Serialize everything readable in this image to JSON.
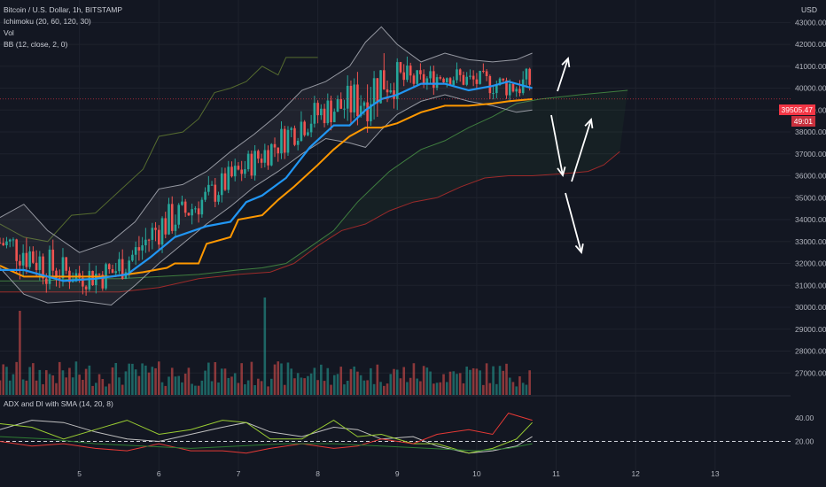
{
  "header": {
    "symbol_line": "Bitcoin / U.S. Dollar, 1h, BITSTAMP",
    "indicators": [
      "Ichimoku (20, 60, 120, 30)",
      "Vol",
      "BB (12, close, 2, 0)"
    ],
    "currency": "USD",
    "price_last": "39505.47",
    "countdown_prefix": "39",
    "countdown": "49:01"
  },
  "subpane": {
    "title": "ADX and DI with SMA (14, 20, 8)"
  },
  "chart_data": {
    "type": "candlestick",
    "price_axis": {
      "min": 26000,
      "max": 43700,
      "ticks": [
        27000,
        28000,
        29000,
        30000,
        31000,
        32000,
        33000,
        34000,
        35000,
        36000,
        37000,
        38000,
        39000,
        40000,
        41000,
        42000,
        43000
      ]
    },
    "x_axis": {
      "range_days": [
        4.0,
        13.95
      ],
      "tick_labels": [
        "5",
        "6",
        "7",
        "8",
        "9",
        "10",
        "11",
        "12",
        "13"
      ],
      "tick_days": [
        5,
        6,
        7,
        8,
        9,
        10,
        11,
        12,
        13
      ]
    },
    "grid": true,
    "price_close_line": 39505.47,
    "tenkan": [
      [
        4.0,
        31700
      ],
      [
        4.3,
        31700
      ],
      [
        4.5,
        31500
      ],
      [
        4.8,
        31200
      ],
      [
        5.2,
        31300
      ],
      [
        5.6,
        31500
      ],
      [
        5.9,
        32300
      ],
      [
        6.2,
        33200
      ],
      [
        6.6,
        33700
      ],
      [
        6.9,
        33900
      ],
      [
        7.1,
        34800
      ],
      [
        7.3,
        35100
      ],
      [
        7.6,
        35900
      ],
      [
        7.9,
        37300
      ],
      [
        8.2,
        38300
      ],
      [
        8.4,
        38300
      ],
      [
        8.6,
        39000
      ],
      [
        8.8,
        39500
      ],
      [
        9.0,
        39700
      ],
      [
        9.3,
        40200
      ],
      [
        9.6,
        40200
      ],
      [
        9.9,
        39900
      ],
      [
        10.2,
        40100
      ],
      [
        10.4,
        40300
      ],
      [
        10.7,
        40000
      ]
    ],
    "kijun": [
      [
        4.0,
        31900
      ],
      [
        4.3,
        31400
      ],
      [
        4.6,
        31400
      ],
      [
        5.0,
        31400
      ],
      [
        5.4,
        31400
      ],
      [
        5.8,
        31600
      ],
      [
        6.1,
        31800
      ],
      [
        6.2,
        32000
      ],
      [
        6.5,
        32000
      ],
      [
        6.6,
        32900
      ],
      [
        6.9,
        33200
      ],
      [
        7.0,
        34000
      ],
      [
        7.3,
        34200
      ],
      [
        7.5,
        34900
      ],
      [
        7.7,
        35500
      ],
      [
        8.0,
        36500
      ],
      [
        8.2,
        37200
      ],
      [
        8.4,
        37800
      ],
      [
        8.6,
        38200
      ],
      [
        8.8,
        38200
      ],
      [
        9.0,
        38400
      ],
      [
        9.3,
        38900
      ],
      [
        9.6,
        39200
      ],
      [
        9.9,
        39200
      ],
      [
        10.2,
        39300
      ],
      [
        10.4,
        39400
      ],
      [
        10.7,
        39500
      ]
    ],
    "senkou_a": [
      [
        4.0,
        31200
      ],
      [
        4.5,
        31200
      ],
      [
        5.0,
        31300
      ],
      [
        5.5,
        31300
      ],
      [
        6.0,
        31400
      ],
      [
        6.5,
        31500
      ],
      [
        7.0,
        31700
      ],
      [
        7.3,
        31800
      ],
      [
        7.6,
        32000
      ],
      [
        7.8,
        32500
      ],
      [
        8.0,
        33000
      ],
      [
        8.2,
        33500
      ],
      [
        8.5,
        34800
      ],
      [
        8.7,
        35500
      ],
      [
        8.9,
        36200
      ],
      [
        9.1,
        36700
      ],
      [
        9.3,
        37200
      ],
      [
        9.6,
        37600
      ],
      [
        9.9,
        38200
      ],
      [
        10.2,
        38700
      ],
      [
        10.5,
        39300
      ],
      [
        10.8,
        39500
      ],
      [
        11.3,
        39700
      ],
      [
        11.6,
        39800
      ],
      [
        11.9,
        39900
      ]
    ],
    "senkou_b": [
      [
        4.0,
        30700
      ],
      [
        4.8,
        30700
      ],
      [
        5.5,
        30700
      ],
      [
        6.0,
        30900
      ],
      [
        6.5,
        31300
      ],
      [
        7.0,
        31500
      ],
      [
        7.4,
        31600
      ],
      [
        7.7,
        32000
      ],
      [
        8.0,
        32800
      ],
      [
        8.3,
        33500
      ],
      [
        8.6,
        33800
      ],
      [
        8.9,
        34400
      ],
      [
        9.2,
        34800
      ],
      [
        9.5,
        35000
      ],
      [
        9.8,
        35500
      ],
      [
        10.1,
        35900
      ],
      [
        10.4,
        36000
      ],
      [
        10.7,
        36000
      ],
      [
        11.1,
        36100
      ],
      [
        11.4,
        36200
      ],
      [
        11.6,
        36500
      ],
      [
        11.8,
        37100
      ]
    ],
    "chikou": [
      [
        4.0,
        33800
      ],
      [
        4.3,
        33200
      ],
      [
        4.6,
        33000
      ],
      [
        4.9,
        34200
      ],
      [
        5.2,
        34300
      ],
      [
        5.5,
        35300
      ],
      [
        5.8,
        36300
      ],
      [
        6.0,
        37800
      ],
      [
        6.3,
        38000
      ],
      [
        6.5,
        38600
      ],
      [
        6.7,
        39800
      ],
      [
        6.9,
        40000
      ],
      [
        7.1,
        40300
      ],
      [
        7.3,
        41000
      ],
      [
        7.5,
        40600
      ],
      [
        7.6,
        41400
      ],
      [
        7.7,
        41400
      ],
      [
        8.0,
        41400
      ]
    ],
    "bb_upper": [
      [
        4.0,
        34100
      ],
      [
        4.3,
        34700
      ],
      [
        4.6,
        33500
      ],
      [
        5.0,
        32500
      ],
      [
        5.4,
        33000
      ],
      [
        5.7,
        33900
      ],
      [
        6.0,
        35400
      ],
      [
        6.3,
        35600
      ],
      [
        6.6,
        36200
      ],
      [
        6.9,
        37100
      ],
      [
        7.2,
        37900
      ],
      [
        7.5,
        38800
      ],
      [
        7.8,
        39900
      ],
      [
        8.1,
        40300
      ],
      [
        8.4,
        41000
      ],
      [
        8.6,
        42100
      ],
      [
        8.8,
        42800
      ],
      [
        9.0,
        42000
      ],
      [
        9.3,
        41200
      ],
      [
        9.6,
        41600
      ],
      [
        9.9,
        41300
      ],
      [
        10.2,
        41200
      ],
      [
        10.5,
        41300
      ],
      [
        10.7,
        41600
      ]
    ],
    "bb_lower": [
      [
        4.0,
        31800
      ],
      [
        4.3,
        30600
      ],
      [
        4.6,
        30200
      ],
      [
        5.0,
        30300
      ],
      [
        5.4,
        30100
      ],
      [
        5.7,
        31000
      ],
      [
        6.0,
        32000
      ],
      [
        6.3,
        32900
      ],
      [
        6.6,
        33800
      ],
      [
        6.9,
        34600
      ],
      [
        7.2,
        35500
      ],
      [
        7.5,
        36200
      ],
      [
        7.8,
        37000
      ],
      [
        8.1,
        37700
      ],
      [
        8.4,
        37500
      ],
      [
        8.6,
        37300
      ],
      [
        8.8,
        38100
      ],
      [
        9.0,
        38800
      ],
      [
        9.3,
        39400
      ],
      [
        9.6,
        39700
      ],
      [
        9.9,
        39400
      ],
      [
        10.2,
        39200
      ],
      [
        10.5,
        38900
      ],
      [
        10.7,
        39000
      ]
    ],
    "annotations": [
      "arrow-up-continuation",
      "arrow-down-pullback",
      "arrow-up-rebound",
      "arrow-down-breakdown"
    ],
    "colors": {
      "up": "#26a69a",
      "down": "#ef5350",
      "tenkan": "#2196f3",
      "kijun": "#ff9800",
      "senkou_a": "#3f7d3f",
      "senkou_b": "#9c2a2a",
      "chikou": "#556b2f",
      "bb": "#9598a1",
      "axis_text": "#b2b5be",
      "background": "#131722"
    },
    "adx": {
      "levels": [
        20,
        40
      ],
      "level_labels": [
        "20.00",
        "40.00"
      ],
      "range": [
        0,
        55
      ],
      "series": [
        {
          "name": "ADX",
          "color": "#c0c0c0"
        },
        {
          "name": "DI+",
          "color": "#9acd32"
        },
        {
          "name": "DI-",
          "color": "#e53935"
        },
        {
          "name": "SMA",
          "color": "#2e7d32"
        }
      ]
    }
  }
}
